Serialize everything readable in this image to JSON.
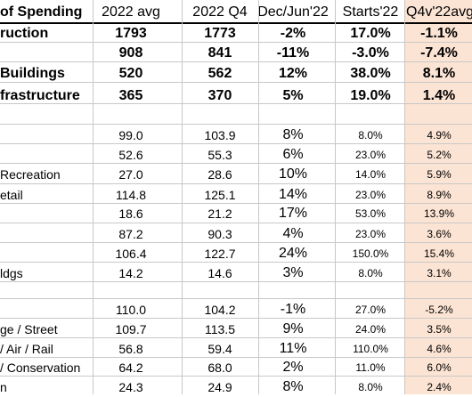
{
  "header": {
    "label": "of Spending",
    "col_2022avg": "2022 avg",
    "col_2022q4": "2022 Q4",
    "col_decjun": "Dec/Jun'22",
    "col_starts": "Starts'22",
    "col_q4v22": "Q4v'22avg"
  },
  "rows": [
    {
      "label": "ruction",
      "avg": "1793",
      "q4": "1773",
      "decjun": "-2%",
      "starts": "17.0%",
      "q4v": "-1.1%",
      "style": "bold"
    },
    {
      "label": "",
      "avg": "908",
      "q4": "841",
      "decjun": "-11%",
      "starts": "-3.0%",
      "q4v": "-7.4%",
      "style": "bold"
    },
    {
      "label": " Buildings",
      "avg": "520",
      "q4": "562",
      "decjun": "12%",
      "starts": "38.0%",
      "q4v": "8.1%",
      "style": "bold"
    },
    {
      "label": "frastructure",
      "avg": "365",
      "q4": "370",
      "decjun": "5%",
      "starts": "19.0%",
      "q4v": "1.4%",
      "style": "bold"
    },
    {
      "label": "",
      "avg": "",
      "q4": "",
      "decjun": "",
      "starts": "",
      "q4v": "",
      "style": "blank"
    },
    {
      "label": "",
      "avg": "99.0",
      "q4": "103.9",
      "decjun": "8%",
      "starts": "8.0%",
      "q4v": "4.9%",
      "style": "norm"
    },
    {
      "label": "",
      "avg": "52.6",
      "q4": "55.3",
      "decjun": "6%",
      "starts": "23.0%",
      "q4v": "5.2%",
      "style": "norm"
    },
    {
      "label": "Recreation",
      "avg": "27.0",
      "q4": "28.6",
      "decjun": "10%",
      "starts": "14.0%",
      "q4v": "5.9%",
      "style": "norm"
    },
    {
      "label": "etail",
      "avg": "114.8",
      "q4": "125.1",
      "decjun": "14%",
      "starts": "23.0%",
      "q4v": "8.9%",
      "style": "norm"
    },
    {
      "label": "",
      "avg": "18.6",
      "q4": "21.2",
      "decjun": "17%",
      "starts": "53.0%",
      "q4v": "13.9%",
      "style": "norm"
    },
    {
      "label": "",
      "avg": "87.2",
      "q4": "90.3",
      "decjun": "4%",
      "starts": "23.0%",
      "q4v": "3.6%",
      "style": "norm"
    },
    {
      "label": "",
      "avg": "106.4",
      "q4": "122.7",
      "decjun": "24%",
      "starts": "150.0%",
      "q4v": "15.4%",
      "style": "norm"
    },
    {
      "label": "ldgs",
      "avg": "14.2",
      "q4": "14.6",
      "decjun": "3%",
      "starts": "8.0%",
      "q4v": "3.1%",
      "style": "norm"
    },
    {
      "label": "",
      "avg": "",
      "q4": "",
      "decjun": "",
      "starts": "",
      "q4v": "",
      "style": "blank"
    },
    {
      "label": "",
      "avg": "110.0",
      "q4": "104.2",
      "decjun": "-1%",
      "starts": "27.0%",
      "q4v": "-5.2%",
      "style": "norm"
    },
    {
      "label": "ge / Street",
      "avg": "109.7",
      "q4": "113.5",
      "decjun": "9%",
      "starts": "24.0%",
      "q4v": "3.5%",
      "style": "norm"
    },
    {
      "label": "/ Air / Rail",
      "avg": "56.8",
      "q4": "59.4",
      "decjun": "11%",
      "starts": "110.0%",
      "q4v": "4.6%",
      "style": "norm"
    },
    {
      "label": "/ Conservation",
      "avg": "64.2",
      "q4": "68.0",
      "decjun": "2%",
      "starts": "11.0%",
      "q4v": "6.0%",
      "style": "norm"
    },
    {
      "label": "n",
      "avg": "24.3",
      "q4": "24.9",
      "decjun": "8%",
      "starts": "8.0%",
      "q4v": "2.4%",
      "style": "norm"
    }
  ]
}
